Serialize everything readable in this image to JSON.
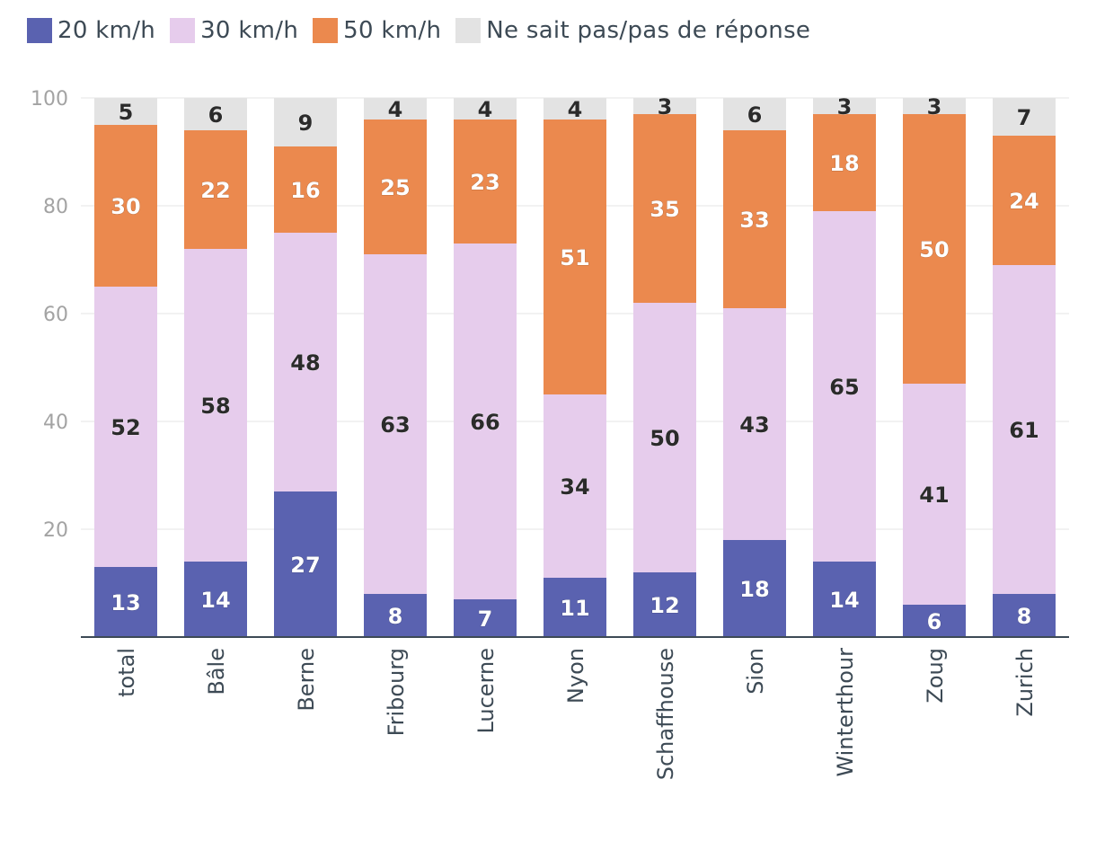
{
  "chart_data": {
    "type": "bar",
    "stacked": true,
    "title": "",
    "xlabel": "",
    "ylabel": "",
    "ylim": [
      0,
      100
    ],
    "yticks": [
      20,
      40,
      60,
      80,
      100
    ],
    "grid": true,
    "legend_position": "top-left",
    "categories": [
      "total",
      "Bâle",
      "Berne",
      "Fribourg",
      "Lucerne",
      "Nyon",
      "Schaffhouse",
      "Sion",
      "Winterthour",
      "Zoug",
      "Zurich"
    ],
    "series": [
      {
        "name": "20 km/h",
        "color": "#5a62b0",
        "label_color": "#ffffff",
        "values": [
          13,
          14,
          27,
          8,
          7,
          11,
          12,
          18,
          14,
          6,
          8
        ]
      },
      {
        "name": "30 km/h",
        "color": "#e6ccec",
        "label_color": "#2b2b2b",
        "values": [
          52,
          58,
          48,
          63,
          66,
          34,
          50,
          43,
          65,
          41,
          61
        ]
      },
      {
        "name": "50 km/h",
        "color": "#eb894e",
        "label_color": "#ffffff",
        "values": [
          30,
          22,
          16,
          25,
          23,
          51,
          35,
          33,
          18,
          50,
          24
        ]
      },
      {
        "name": "Ne sait pas/pas de réponse",
        "color": "#e3e3e3",
        "label_color": "#2b2b2b",
        "values": [
          5,
          6,
          9,
          4,
          4,
          4,
          3,
          6,
          3,
          3,
          7
        ]
      }
    ]
  }
}
